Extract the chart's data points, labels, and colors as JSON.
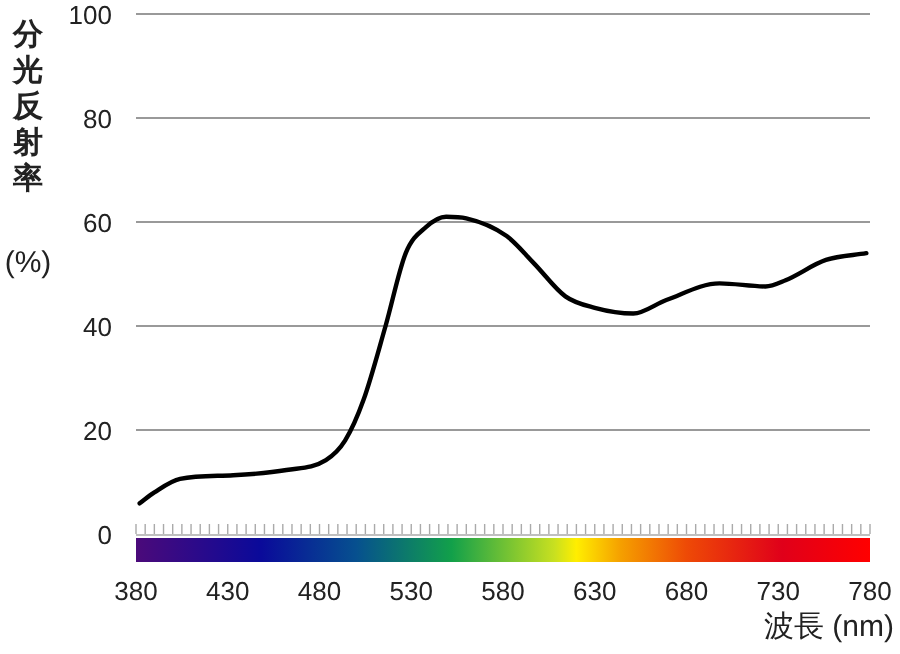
{
  "chart_data": {
    "type": "line",
    "xlabel": "波長 (nm)",
    "ylabel": "分光反射率(%)",
    "xlim": [
      380,
      780
    ],
    "xticks": [
      380,
      430,
      480,
      530,
      580,
      630,
      680,
      730,
      780
    ],
    "ylim": [
      0,
      100
    ],
    "yticks": [
      0,
      20,
      40,
      60,
      80,
      100
    ],
    "grid": "y",
    "marker": "none",
    "line_style": "solid",
    "series": [
      {
        "color": "#000000",
        "x": [
          382,
          390,
          404,
          433,
          462,
          483.5,
          494,
          504,
          516,
          527,
          538,
          549,
          560,
          582,
          597,
          614,
          630,
          651,
          669,
          698,
          723,
          734,
          756,
          778
        ],
        "values": [
          5.9,
          8,
          10.6,
          11.3,
          12.3,
          14.2,
          18,
          25.8,
          40,
          54,
          59,
          61,
          60.7,
          57.3,
          52,
          45.7,
          43.5,
          42.4,
          45,
          48.2,
          47.6,
          48.8,
          52.7,
          54
        ]
      }
    ]
  }
}
